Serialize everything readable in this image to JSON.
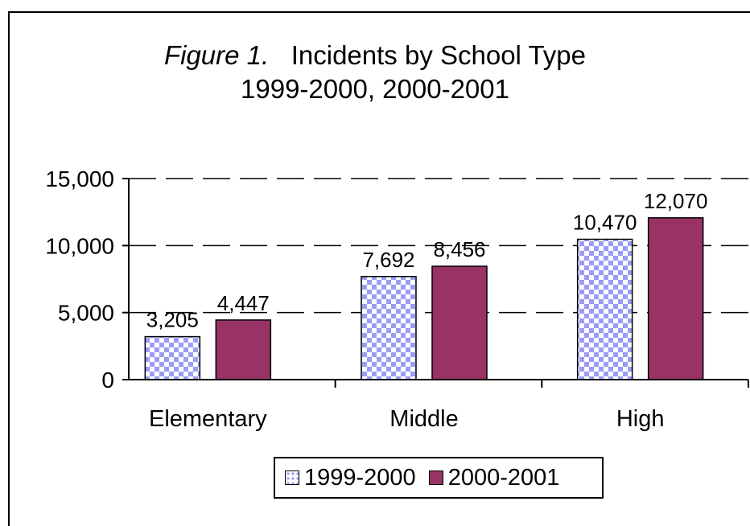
{
  "title": {
    "prefix": "Figure 1.",
    "line1": "Incidents by School Type",
    "line2": "1999-2000, 2000-2001"
  },
  "chart_data": {
    "type": "bar",
    "title": "Figure 1. Incidents by School Type 1999-2000, 2000-2001",
    "categories": [
      "Elementary",
      "Middle",
      "High"
    ],
    "series": [
      {
        "name": "1999-2000",
        "values": [
          3205,
          7692,
          10470
        ],
        "labels": [
          "3,205",
          "7,692",
          "10,470"
        ],
        "color": "#9b9cf6",
        "pattern": "checker"
      },
      {
        "name": "2000-2001",
        "values": [
          4447,
          8456,
          12070
        ],
        "labels": [
          "4,447",
          "8,456",
          "12,070"
        ],
        "color": "#993366"
      }
    ],
    "ylim": [
      0,
      15000
    ],
    "yticks": [
      0,
      5000,
      10000,
      15000
    ],
    "ytick_labels": [
      "0",
      "5,000",
      "10,000",
      "15,000"
    ],
    "gridlines": "dashed",
    "legend_position": "bottom"
  }
}
